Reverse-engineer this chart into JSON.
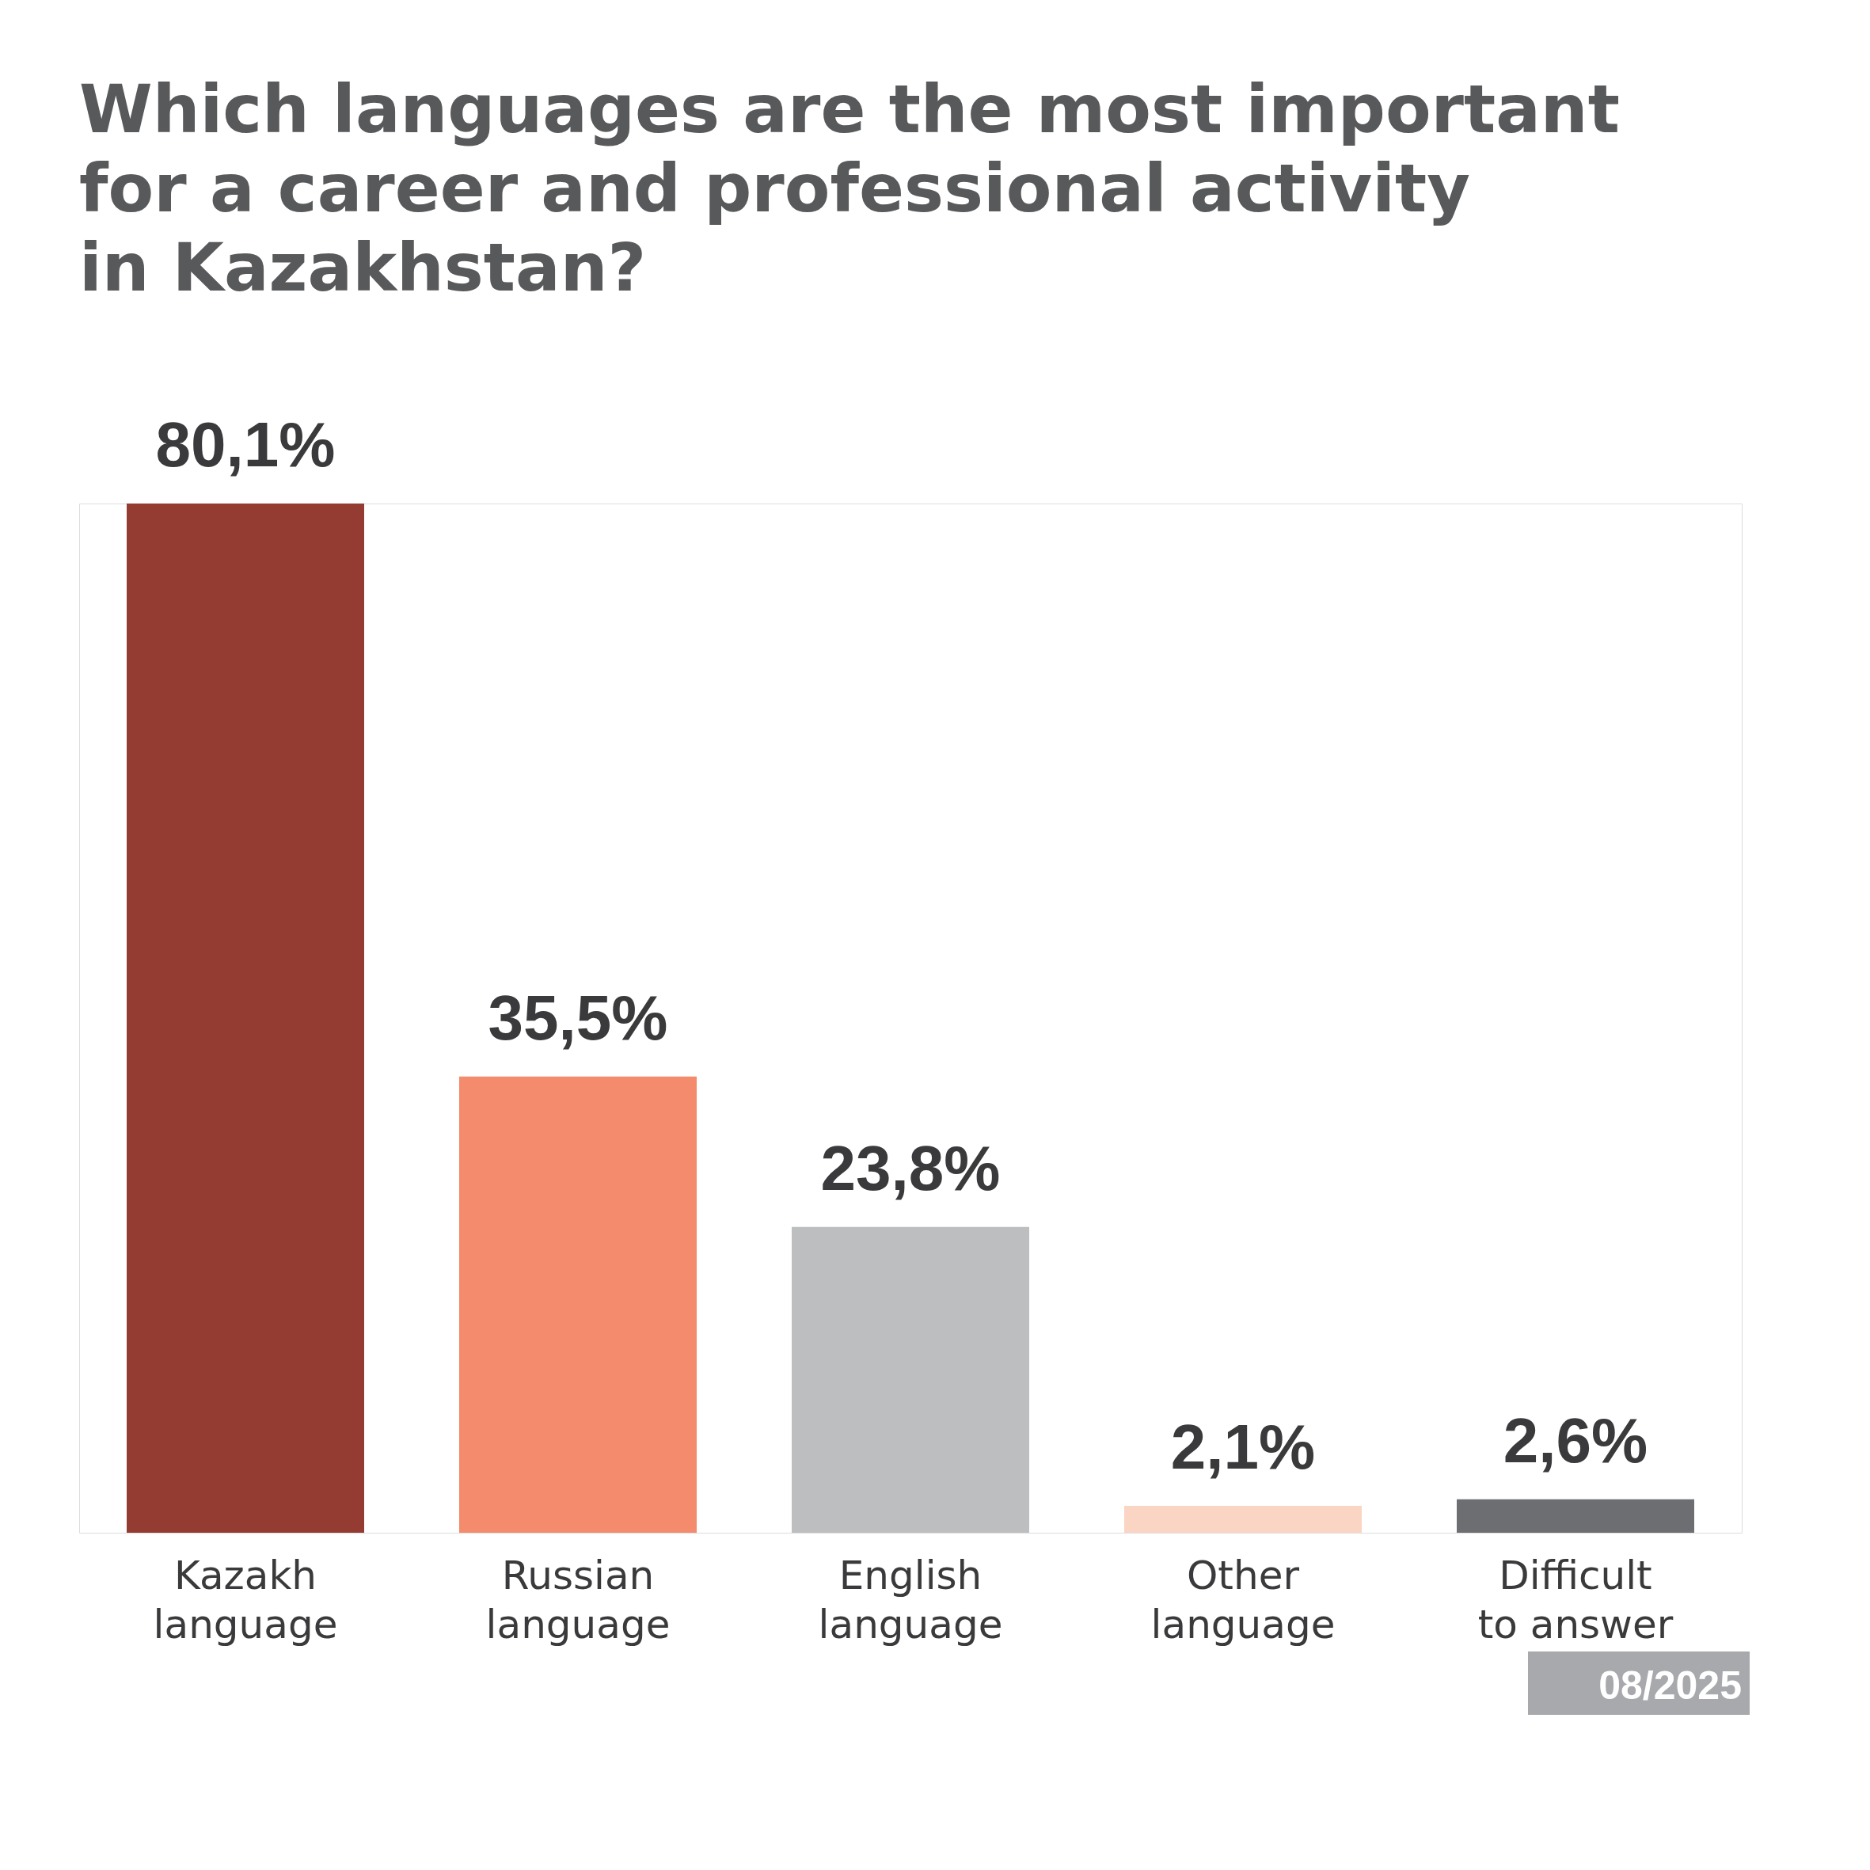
{
  "chart_data": {
    "type": "bar",
    "title": "Which languages are the most important for a career and professional activity in Kazakhstan?",
    "categories": [
      "Kazakh language",
      "Russian language",
      "English language",
      "Other language",
      "Difficult to answer"
    ],
    "values": [
      80.1,
      35.5,
      23.8,
      2.1,
      2.6
    ],
    "colors": [
      "#943b32",
      "#f48b6c",
      "#bdbec0",
      "#fbd5c4",
      "#6d6e71"
    ],
    "value_labels": [
      "80,1%",
      "35,5%",
      "23,8%",
      "2,1%",
      "2,6%"
    ],
    "annotations": [
      "08/2025"
    ],
    "grid": false,
    "legend": false
  }
}
